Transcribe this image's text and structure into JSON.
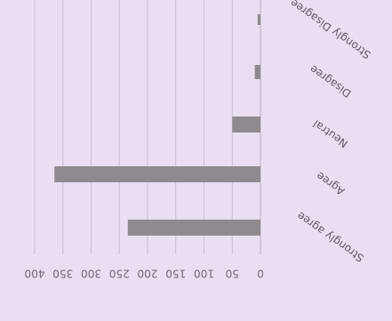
{
  "chart_data": {
    "type": "bar",
    "orientation": "horizontal",
    "image_rotation_degrees": 180,
    "categories": [
      "Strongly Disagree",
      "Disagree",
      "Neutral",
      "Agree",
      "Strongly agree"
    ],
    "values": [
      5,
      10,
      50,
      365,
      235
    ],
    "xlim": [
      0,
      400
    ],
    "x_ticks": [
      0,
      50,
      100,
      150,
      200,
      250,
      300,
      350,
      400
    ],
    "title": "",
    "xlabel": "",
    "ylabel": "",
    "grid": true,
    "legend": "none",
    "colors": {
      "background": "#e9dff0",
      "bar": "#8e8a90",
      "grid": "#cbc0d4",
      "text": "#5f5966"
    }
  }
}
